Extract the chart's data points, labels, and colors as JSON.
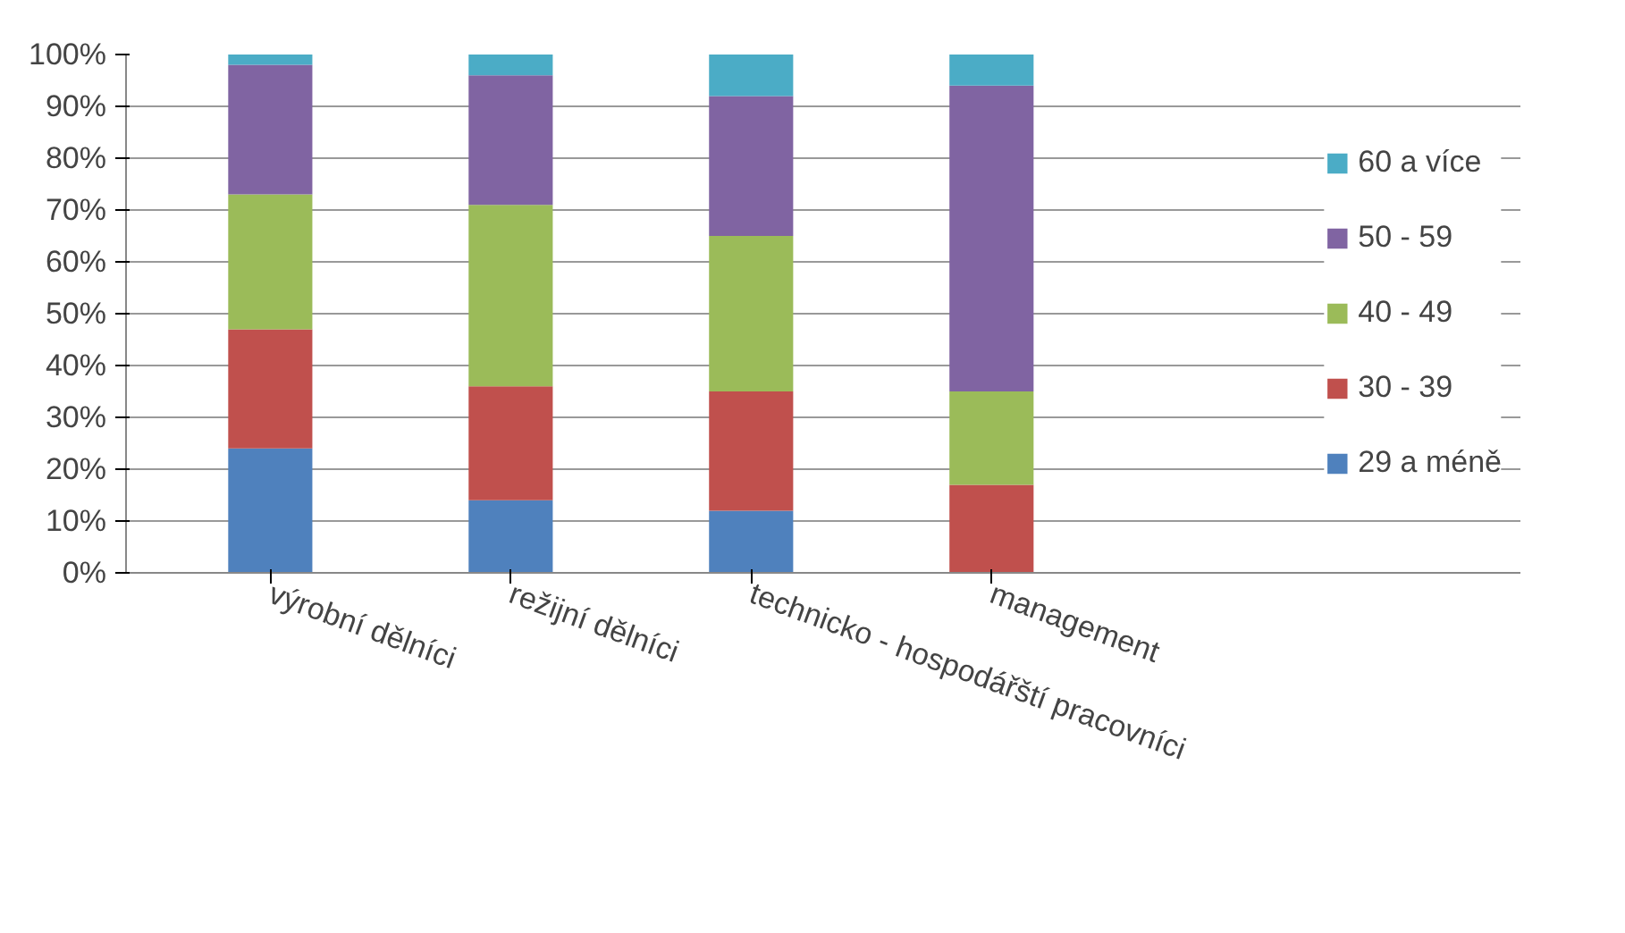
{
  "chart_data": {
    "type": "bar",
    "stacked": true,
    "categories": [
      "výrobní dělníci",
      "režijní dělníci",
      "technicko - hospodářští pracovníci",
      "management"
    ],
    "series": [
      {
        "name": "29 a méně",
        "color": "#4f81bd",
        "values": [
          24,
          14,
          12,
          0
        ]
      },
      {
        "name": "30 - 39",
        "color": "#c0504d",
        "values": [
          23,
          22,
          23,
          17
        ]
      },
      {
        "name": "40 - 49",
        "color": "#9bbb59",
        "values": [
          26,
          35,
          30,
          18
        ]
      },
      {
        "name": "50 - 59",
        "color": "#8064a2",
        "values": [
          25,
          25,
          27,
          59
        ]
      },
      {
        "name": "60 a více",
        "color": "#4bacc6",
        "values": [
          2,
          4,
          8,
          6
        ]
      }
    ],
    "ylim": [
      0,
      100
    ],
    "yticks": [
      {
        "value": 0,
        "label": "0%"
      },
      {
        "value": 10,
        "label": "10%"
      },
      {
        "value": 20,
        "label": "20%"
      },
      {
        "value": 30,
        "label": "30%"
      },
      {
        "value": 40,
        "label": "40%"
      },
      {
        "value": 50,
        "label": "50%"
      },
      {
        "value": 60,
        "label": "60%"
      },
      {
        "value": 70,
        "label": "70%"
      },
      {
        "value": 80,
        "label": "80%"
      },
      {
        "value": 90,
        "label": "90%"
      },
      {
        "value": 100,
        "label": "100%"
      }
    ],
    "grid": "y",
    "legend": "right"
  }
}
